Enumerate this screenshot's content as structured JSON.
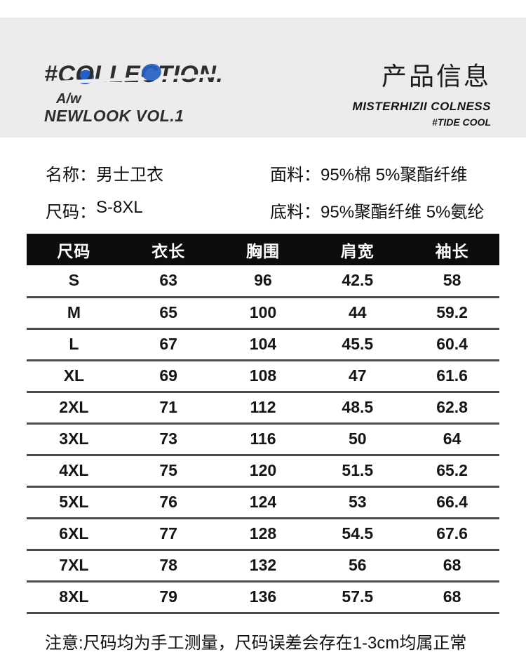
{
  "colors": {
    "hero_band": "#ececec",
    "accent_blue": "#2560c6",
    "table_header_bg": "#0d0d0d",
    "row_divider": "#4c4c4c"
  },
  "header": {
    "brand": "#COLLECTION.",
    "season": "A/w",
    "lookbook": "NEWLOOK VOL.1",
    "title_cn": "产品信息",
    "subtitle": "MISTERHIZII COLNESS",
    "tagline": "#TIDE COOL"
  },
  "product_meta": {
    "fields": [
      {
        "label": "名称：",
        "value": "男士卫衣"
      },
      {
        "label": "面料：",
        "value": "95%棉 5%聚酯纤维"
      },
      {
        "label": "尺码：",
        "value": "S-8XL"
      },
      {
        "label": "底料：",
        "value": "95%聚酯纤维 5%氨纶"
      }
    ]
  },
  "size_table": {
    "columns": [
      "尺码",
      "衣长",
      "胸围",
      "肩宽",
      "袖长"
    ],
    "rows": [
      [
        "S",
        "63",
        "96",
        "42.5",
        "58"
      ],
      [
        "M",
        "65",
        "100",
        "44",
        "59.2"
      ],
      [
        "L",
        "67",
        "104",
        "45.5",
        "60.4"
      ],
      [
        "XL",
        "69",
        "108",
        "47",
        "61.6"
      ],
      [
        "2XL",
        "71",
        "112",
        "48.5",
        "62.8"
      ],
      [
        "3XL",
        "73",
        "116",
        "50",
        "64"
      ],
      [
        "4XL",
        "75",
        "120",
        "51.5",
        "65.2"
      ],
      [
        "5XL",
        "76",
        "124",
        "53",
        "66.4"
      ],
      [
        "6XL",
        "77",
        "128",
        "54.5",
        "67.6"
      ],
      [
        "7XL",
        "78",
        "132",
        "56",
        "68"
      ],
      [
        "8XL",
        "79",
        "136",
        "57.5",
        "68"
      ]
    ]
  },
  "footer": {
    "note": "注意:尺码均为手工测量，尺码误差会存在1-3cm均属正常"
  }
}
